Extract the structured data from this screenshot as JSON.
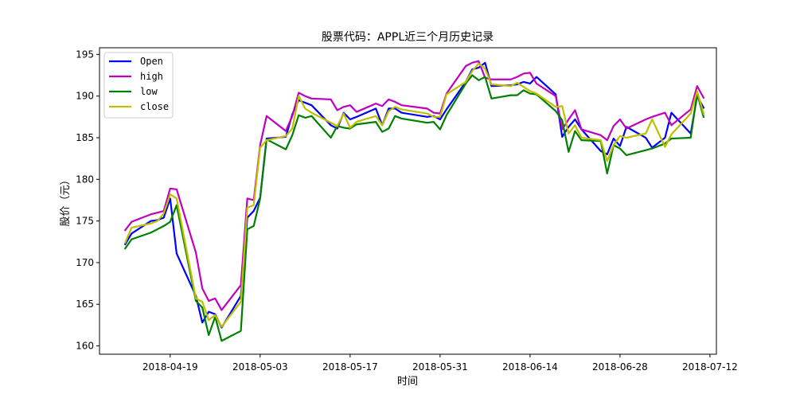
{
  "chart_data": {
    "type": "line",
    "title": "股票代码：APPL近三个月历史记录",
    "xlabel": "时间",
    "ylabel": "股价（元）",
    "ylim": [
      159,
      195.8
    ],
    "yticks": [
      160,
      165,
      170,
      175,
      180,
      185,
      190,
      195
    ],
    "xlim": [
      "2018-04-08",
      "2018-07-13"
    ],
    "xticks": [
      "2018-04-19",
      "2018-05-03",
      "2018-05-17",
      "2018-05-31",
      "2018-06-14",
      "2018-06-28",
      "2018-07-12"
    ],
    "grid": false,
    "legend": "top-left",
    "x": [
      "2018-04-12",
      "2018-04-13",
      "2018-04-16",
      "2018-04-17",
      "2018-04-18",
      "2018-04-19",
      "2018-04-20",
      "2018-04-23",
      "2018-04-24",
      "2018-04-25",
      "2018-04-26",
      "2018-04-27",
      "2018-04-30",
      "2018-05-01",
      "2018-05-02",
      "2018-05-03",
      "2018-05-04",
      "2018-05-07",
      "2018-05-08",
      "2018-05-09",
      "2018-05-10",
      "2018-05-11",
      "2018-05-14",
      "2018-05-15",
      "2018-05-16",
      "2018-05-17",
      "2018-05-18",
      "2018-05-21",
      "2018-05-22",
      "2018-05-23",
      "2018-05-24",
      "2018-05-25",
      "2018-05-29",
      "2018-05-30",
      "2018-05-31",
      "2018-06-01",
      "2018-06-04",
      "2018-06-05",
      "2018-06-06",
      "2018-06-07",
      "2018-06-08",
      "2018-06-11",
      "2018-06-12",
      "2018-06-13",
      "2018-06-14",
      "2018-06-15",
      "2018-06-18",
      "2018-06-19",
      "2018-06-20",
      "2018-06-21",
      "2018-06-22",
      "2018-06-25",
      "2018-06-26",
      "2018-06-27",
      "2018-06-28",
      "2018-06-29",
      "2018-07-02",
      "2018-07-03",
      "2018-07-05",
      "2018-07-06",
      "2018-07-09",
      "2018-07-10",
      "2018-07-11"
    ],
    "series": [
      {
        "name": "Open",
        "color": "#0000ff",
        "values": [
          172.2,
          173.5,
          175,
          175.1,
          175.4,
          177.7,
          171.1,
          166.0,
          162.8,
          164.1,
          163.8,
          162.2,
          166.0,
          175.4,
          176.2,
          177.8,
          184.9,
          185.1,
          187.8,
          189.5,
          189.2,
          188.9,
          186.5,
          186.1,
          188.0,
          187.2,
          187.5,
          188.5,
          186.5,
          188.5,
          188.5,
          188.0,
          187.5,
          187.6,
          187.2,
          188.4,
          191.7,
          193.2,
          193.4,
          194.0,
          191.2,
          191.3,
          191.4,
          191.7,
          191.5,
          192.3,
          190.2,
          185.1,
          186.3,
          187.2,
          186.0,
          183.4,
          183.0,
          184.9,
          184.0,
          186.3,
          185.0,
          183.8,
          185.0,
          188.0,
          185.5,
          190.0,
          188.6
        ]
      },
      {
        "name": "high",
        "color": "#bf00bf",
        "values": [
          173.9,
          174.9,
          175.8,
          176.0,
          176.2,
          178.9,
          178.8,
          171.2,
          166.9,
          165.4,
          165.7,
          164.3,
          167.3,
          177.7,
          177.5,
          184.1,
          187.6,
          185.8,
          187.6,
          190.4,
          190.0,
          189.7,
          189.6,
          188.3,
          188.7,
          188.9,
          188.1,
          189.1,
          188.8,
          189.6,
          189.3,
          188.9,
          188.5,
          188.0,
          187.9,
          190.3,
          193.6,
          194.0,
          194.2,
          192.2,
          192.0,
          192.0,
          192.3,
          192.7,
          192.8,
          191.5,
          190.0,
          186.0,
          187.2,
          188.3,
          186.0,
          185.3,
          184.7,
          186.4,
          187.2,
          186.1,
          187.2,
          187.5,
          188.0,
          186.5,
          188.4,
          191.2,
          189.8
        ]
      },
      {
        "name": "low",
        "color": "#008000",
        "values": [
          171.7,
          172.8,
          173.6,
          174.0,
          174.4,
          174.9,
          176.9,
          165.4,
          164.6,
          161.3,
          163.5,
          160.6,
          161.8,
          174.0,
          174.4,
          177.7,
          184.8,
          183.6,
          185.3,
          187.7,
          187.4,
          187.6,
          185.0,
          186.4,
          186.2,
          186.1,
          186.6,
          186.9,
          185.7,
          186.1,
          187.6,
          187.3,
          186.8,
          186.9,
          186.0,
          187.7,
          191.5,
          192.5,
          191.9,
          192.3,
          189.7,
          190.1,
          190.1,
          190.7,
          190.3,
          190.2,
          188.2,
          187.1,
          183.3,
          185.8,
          184.7,
          184.6,
          180.7,
          184.1,
          183.7,
          182.9,
          183.5,
          183.7,
          184.3,
          184.9,
          185.0,
          190.3,
          187.5
        ]
      },
      {
        "name": "close",
        "color": "#bfbf00",
        "values": [
          172.4,
          174.2,
          174.7,
          175.0,
          175.9,
          178.2,
          177.7,
          165.7,
          165.3,
          163.1,
          163.7,
          162.3,
          165.3,
          176.6,
          176.9,
          183.8,
          184.7,
          185.2,
          186.1,
          190.0,
          188.5,
          188.0,
          186.8,
          186.4,
          187.9,
          186.2,
          186.9,
          187.6,
          186.5,
          188.2,
          188.7,
          188.4,
          187.9,
          187.5,
          187.5,
          190.2,
          191.7,
          193.0,
          193.9,
          193.3,
          191.4,
          191.2,
          191.6,
          191.1,
          190.6,
          190.3,
          188.7,
          188.8,
          185.5,
          186.5,
          185.0,
          184.7,
          182.2,
          184.1,
          185.2,
          185.0,
          185.5,
          187.2,
          183.9,
          185.4,
          187.9,
          190.6,
          187.9
        ]
      }
    ]
  }
}
